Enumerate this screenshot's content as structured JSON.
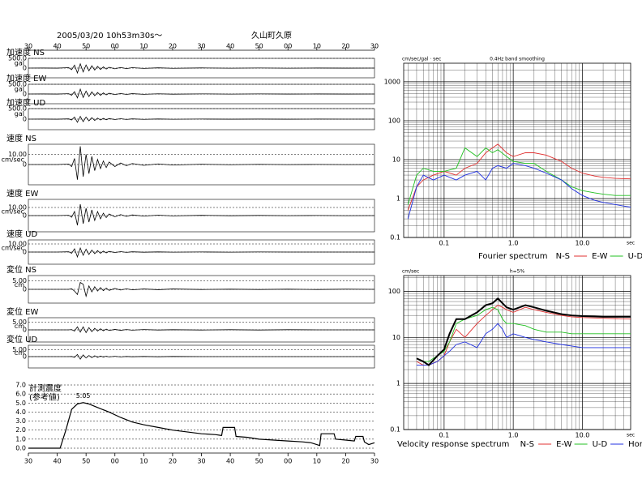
{
  "chart_data": [
    {
      "type": "waveform",
      "title": "2005/03/20 10h53m30s～",
      "subtitle": "久山町久原",
      "xlim": [
        0,
        120
      ],
      "xticks": [
        {
          "value": 0,
          "label": "30"
        },
        {
          "value": 10,
          "label": "40"
        },
        {
          "value": 20,
          "label": "50"
        },
        {
          "value": 30,
          "label": "00"
        },
        {
          "value": 40,
          "label": "10"
        },
        {
          "value": 50,
          "label": "20"
        },
        {
          "value": 60,
          "label": "30"
        },
        {
          "value": 70,
          "label": "40"
        },
        {
          "value": 80,
          "label": "50"
        },
        {
          "value": 90,
          "label": "00"
        },
        {
          "value": 100,
          "label": "10"
        },
        {
          "value": 110,
          "label": "20"
        },
        {
          "value": 120,
          "label": "30"
        }
      ],
      "x": [
        0,
        5,
        10,
        14,
        15,
        16,
        17,
        18,
        19,
        20,
        21,
        22,
        23,
        24,
        25,
        26,
        27,
        28,
        30,
        32,
        34,
        36,
        40,
        45,
        50,
        60,
        70,
        80,
        90,
        100,
        110,
        120
      ],
      "channels": [
        {
          "name": "加速度 NS",
          "unit": "gal",
          "ylim": [
            -500,
            500
          ],
          "yticks": [
            {
              "value": 500,
              "label": "500.0"
            },
            0
          ],
          "values": [
            0,
            2,
            -3,
            20,
            -80,
            150,
            -250,
            220,
            -200,
            160,
            -140,
            120,
            -100,
            90,
            -70,
            60,
            -50,
            40,
            -35,
            30,
            -25,
            20,
            -15,
            12,
            -10,
            8,
            -6,
            5,
            -4,
            3,
            -2,
            1
          ]
        },
        {
          "name": "加速度 EW",
          "unit": "gal",
          "ylim": [
            -500,
            500
          ],
          "yticks": [
            {
              "value": 500,
              "label": "500.0"
            },
            0
          ],
          "values": [
            0,
            2,
            -3,
            15,
            -60,
            120,
            -200,
            250,
            -180,
            150,
            -130,
            110,
            -90,
            80,
            -65,
            55,
            -45,
            38,
            -30,
            25,
            -20,
            18,
            -14,
            10,
            -8,
            6,
            -5,
            4,
            -3,
            2,
            -2,
            1
          ]
        },
        {
          "name": "加速度 UD",
          "unit": "gal",
          "ylim": [
            -500,
            500
          ],
          "yticks": [
            {
              "value": 500,
              "label": "500.0"
            },
            0
          ],
          "values": [
            0,
            2,
            -2,
            12,
            -40,
            100,
            -150,
            130,
            -120,
            100,
            -80,
            70,
            -60,
            50,
            -40,
            35,
            -30,
            25,
            -20,
            18,
            -14,
            12,
            -9,
            7,
            -5,
            4,
            -3,
            3,
            -2,
            2,
            -1,
            1
          ]
        },
        {
          "name": "速度 NS",
          "unit": "cm/sec",
          "ylim": [
            -20,
            20
          ],
          "yticks": [
            {
              "value": 10,
              "label": "10.00"
            },
            0
          ],
          "values": [
            0,
            0,
            0,
            0.5,
            -2,
            6,
            -15,
            18,
            -12,
            10,
            -9,
            8,
            -6,
            5,
            -4,
            3.5,
            -3,
            2.5,
            -2,
            1.5,
            -1.2,
            1,
            -0.8,
            0.6,
            -0.5,
            0.3,
            -0.2,
            0.2,
            -0.1,
            0.1,
            -0.1,
            0
          ]
        },
        {
          "name": "速度 EW",
          "unit": "cm/sec",
          "ylim": [
            -20,
            20
          ],
          "yticks": [
            {
              "value": 10,
              "label": "10.00"
            },
            0
          ],
          "values": [
            0,
            0,
            0,
            0.4,
            -2,
            5,
            -12,
            14,
            -10,
            9,
            -8,
            7,
            -6,
            5,
            -4,
            3,
            -2.5,
            2,
            -1.5,
            1.2,
            -1,
            0.8,
            -0.6,
            0.5,
            -0.4,
            0.3,
            -0.2,
            0.2,
            -0.1,
            0.1,
            -0.1,
            0
          ]
        },
        {
          "name": "速度 UD",
          "unit": "cm/sec",
          "ylim": [
            -15,
            15
          ],
          "yticks": [
            {
              "value": 10,
              "label": "10.00"
            },
            0
          ],
          "values": [
            0,
            0,
            0,
            0.3,
            -1.5,
            4,
            -6,
            5,
            -4,
            3.5,
            -3,
            2.5,
            -2,
            1.8,
            -1.5,
            1.2,
            -1,
            0.8,
            -0.6,
            0.5,
            -0.4,
            0.3,
            -0.2,
            0.2,
            -0.1,
            0.1,
            -0.1,
            0.1,
            0,
            0,
            0,
            0
          ]
        },
        {
          "name": "変位 NS",
          "unit": "cm",
          "ylim": [
            -8,
            8
          ],
          "yticks": [
            {
              "value": 5,
              "label": "5.00"
            },
            0
          ],
          "values": [
            0,
            0,
            0,
            0,
            0.3,
            -1,
            -3,
            4,
            3,
            -4,
            2,
            -1.5,
            1.5,
            -1,
            1,
            -0.8,
            0.7,
            -0.6,
            0.5,
            -0.4,
            0.3,
            -0.3,
            0.2,
            -0.2,
            0.2,
            -0.1,
            0.1,
            -0.1,
            0.1,
            -0.1,
            0.1,
            0
          ]
        },
        {
          "name": "変位 EW",
          "unit": "cm",
          "ylim": [
            -8,
            8
          ],
          "yticks": [
            {
              "value": 5,
              "label": "5.00"
            },
            0
          ],
          "values": [
            0,
            0,
            0,
            0,
            0.2,
            -0.8,
            2,
            -1.5,
            2,
            -1.8,
            1.5,
            -1.2,
            1,
            -0.8,
            0.7,
            -0.6,
            0.5,
            -0.4,
            0.3,
            -0.3,
            0.2,
            -0.2,
            0.2,
            -0.1,
            0.1,
            -0.1,
            0.1,
            -0.1,
            0.1,
            0,
            0,
            0
          ]
        },
        {
          "name": "変位 UD",
          "unit": "cm",
          "ylim": [
            -8,
            8
          ],
          "yticks": [
            {
              "value": 5,
              "label": "5.00"
            },
            0
          ],
          "values": [
            0,
            0,
            0,
            0,
            0.1,
            -0.5,
            1.5,
            -1.8,
            1.2,
            -1,
            0.8,
            -0.7,
            0.6,
            -0.5,
            0.4,
            -0.3,
            0.3,
            -0.2,
            0.2,
            -0.2,
            0.1,
            -0.1,
            0.1,
            -0.1,
            0.1,
            0,
            0,
            0,
            0,
            0,
            0,
            0
          ]
        }
      ]
    },
    {
      "type": "line",
      "title": "計測震度",
      "subtitle": "(参考値)",
      "color": "#000000",
      "xlim": [
        0,
        120
      ],
      "xticks": [
        {
          "value": 0,
          "label": "30"
        },
        {
          "value": 10,
          "label": "40"
        },
        {
          "value": 20,
          "label": "50"
        },
        {
          "value": 30,
          "label": "00"
        },
        {
          "value": 40,
          "label": "10"
        },
        {
          "value": 50,
          "label": "20"
        },
        {
          "value": 60,
          "label": "30"
        },
        {
          "value": 70,
          "label": "40"
        },
        {
          "value": 80,
          "label": "50"
        },
        {
          "value": 90,
          "label": "00"
        },
        {
          "value": 100,
          "label": "10"
        },
        {
          "value": 110,
          "label": "20"
        },
        {
          "value": 120,
          "label": "30"
        }
      ],
      "ylim": [
        0,
        7
      ],
      "yticks": [
        {
          "value": 0,
          "label": "0.0"
        },
        {
          "value": 1,
          "label": "1.0"
        },
        {
          "value": 2,
          "label": "2.0"
        },
        {
          "value": 3,
          "label": "3.0"
        },
        {
          "value": 4,
          "label": "4.0"
        },
        {
          "value": 5,
          "label": "5.0"
        },
        {
          "value": 6,
          "label": "6.0"
        },
        {
          "value": 7,
          "label": "7.0"
        }
      ],
      "grid": true,
      "annotations": [
        {
          "x": 19,
          "value": 5.05
        }
      ],
      "x": [
        0,
        11,
        13,
        15,
        17,
        19,
        21,
        24,
        28,
        32,
        36,
        40,
        45,
        50,
        55,
        60,
        65,
        67,
        67.5,
        71.5,
        72,
        76,
        80,
        85,
        90,
        95,
        98,
        100,
        101,
        101.5,
        106,
        106.5,
        110,
        113,
        113.5,
        116,
        116.5,
        118,
        120
      ],
      "values": [
        0,
        0,
        2,
        4.3,
        4.9,
        5.05,
        4.9,
        4.5,
        4,
        3.4,
        2.9,
        2.6,
        2.3,
        2,
        1.8,
        1.6,
        1.5,
        1.4,
        2.3,
        2.3,
        1.3,
        1.2,
        1,
        0.9,
        0.8,
        0.7,
        0.6,
        0.4,
        0.3,
        1.6,
        1.6,
        1,
        0.9,
        0.8,
        1.3,
        1.3,
        0.7,
        0.4,
        0.6
      ]
    },
    {
      "type": "line",
      "log_x": true,
      "log_y": true,
      "y_label": "cm/sec/gal · sec",
      "subtitle": "0.4Hz band smoothing",
      "x_label": "sec",
      "legend_title": "Fourier spectrum",
      "xlim": [
        0.026,
        50
      ],
      "ylim": [
        0.1,
        3000
      ],
      "xticks": [
        {
          "value": 0.1,
          "label": "0.1"
        },
        {
          "value": 1,
          "label": "1.0"
        },
        {
          "value": 10,
          "label": "10.0"
        }
      ],
      "yticks": [
        0.1,
        1,
        10,
        100,
        1000
      ],
      "xminor": [
        0.03,
        0.04,
        0.05,
        0.06,
        0.07,
        0.08,
        0.09,
        0.2,
        0.3,
        0.4,
        0.5,
        0.6,
        0.7,
        0.8,
        0.9,
        2,
        3,
        4,
        5,
        6,
        7,
        8,
        9,
        20,
        30,
        40
      ],
      "yminor": [
        0.2,
        0.3,
        0.4,
        0.5,
        0.6,
        0.7,
        0.8,
        0.9,
        2,
        3,
        4,
        5,
        6,
        7,
        8,
        9,
        20,
        30,
        40,
        50,
        60,
        70,
        80,
        90,
        200,
        300,
        400,
        500,
        600,
        700,
        800,
        900,
        2000
      ],
      "x": [
        0.03,
        0.04,
        0.05,
        0.07,
        0.1,
        0.15,
        0.2,
        0.3,
        0.4,
        0.5,
        0.6,
        0.8,
        1,
        1.5,
        2,
        3,
        5,
        7,
        10,
        15,
        20,
        30,
        50
      ],
      "series": [
        {
          "name": "N-S",
          "color": "#e03030",
          "values": [
            0.5,
            2,
            3,
            4,
            5,
            4,
            6,
            8,
            15,
            20,
            25,
            15,
            12,
            15,
            15,
            13,
            9,
            6,
            4.5,
            3.8,
            3.5,
            3.3,
            3.2
          ]
        },
        {
          "name": "E-W",
          "color": "#20c020",
          "values": [
            0.7,
            4,
            6,
            5,
            5,
            6,
            20,
            12,
            20,
            15,
            18,
            12,
            9,
            8,
            8,
            5,
            3,
            2,
            1.6,
            1.4,
            1.3,
            1.2,
            1.2
          ]
        },
        {
          "name": "U-D",
          "color": "#2030e0",
          "values": [
            0.3,
            2,
            4,
            3,
            4,
            3,
            4,
            5,
            3,
            6,
            7,
            6,
            8,
            7,
            6,
            4.5,
            3,
            1.8,
            1.2,
            0.9,
            0.8,
            0.7,
            0.6
          ]
        }
      ]
    },
    {
      "type": "line",
      "log_x": true,
      "log_y": true,
      "y_label": "cm/sec",
      "subtitle": "h=5%",
      "x_label": "sec",
      "legend_title": "Velocity response spectrum",
      "xlim": [
        0.026,
        50
      ],
      "ylim": [
        0.1,
        220
      ],
      "xticks": [
        {
          "value": 0.1,
          "label": "0.1"
        },
        {
          "value": 1,
          "label": "1.0"
        },
        {
          "value": 10,
          "label": "10.0"
        }
      ],
      "yticks": [
        0.1,
        1,
        10,
        100
      ],
      "xminor": [
        0.03,
        0.04,
        0.05,
        0.06,
        0.07,
        0.08,
        0.09,
        0.2,
        0.3,
        0.4,
        0.5,
        0.6,
        0.7,
        0.8,
        0.9,
        2,
        3,
        4,
        5,
        6,
        7,
        8,
        9,
        20,
        30,
        40
      ],
      "yminor": [
        0.2,
        0.3,
        0.4,
        0.5,
        0.6,
        0.7,
        0.8,
        0.9,
        2,
        3,
        4,
        5,
        6,
        7,
        8,
        9,
        20,
        30,
        40,
        50,
        60,
        70,
        80,
        90,
        200
      ],
      "x": [
        0.04,
        0.05,
        0.06,
        0.08,
        0.1,
        0.12,
        0.15,
        0.2,
        0.3,
        0.4,
        0.5,
        0.6,
        0.7,
        0.8,
        1,
        1.5,
        2,
        3,
        5,
        7,
        10,
        20,
        50
      ],
      "series": [
        {
          "name": "N-S",
          "color": "#e03030",
          "values": [
            3,
            2.5,
            2.5,
            3,
            4,
            8,
            15,
            10,
            20,
            30,
            40,
            50,
            45,
            40,
            35,
            45,
            40,
            35,
            30,
            28,
            27,
            26,
            25
          ]
        },
        {
          "name": "E-W",
          "color": "#20c020",
          "values": [
            3.5,
            3,
            3,
            4,
            5,
            8,
            20,
            25,
            30,
            40,
            45,
            40,
            25,
            20,
            20,
            18,
            15,
            13,
            13,
            12,
            12,
            12,
            12
          ]
        },
        {
          "name": "U-D",
          "color": "#2030e0",
          "values": [
            2.5,
            2.5,
            2.5,
            3,
            4,
            5,
            7,
            8,
            6,
            12,
            15,
            20,
            15,
            10,
            12,
            10,
            9,
            8,
            7,
            6.5,
            6,
            6,
            6
          ]
        },
        {
          "name": "Horizon",
          "color": "#000000",
          "values": [
            3.5,
            3,
            2.5,
            4,
            5.5,
            12,
            25,
            25,
            35,
            50,
            55,
            70,
            55,
            45,
            40,
            50,
            45,
            38,
            32,
            30,
            29,
            28,
            28
          ]
        }
      ]
    }
  ]
}
